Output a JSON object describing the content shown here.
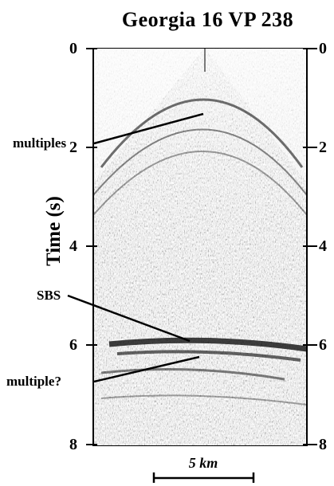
{
  "title": "Georgia 16 VP 238",
  "axis": {
    "ylabel": "Time (s)",
    "ticks": [
      "0",
      "2",
      "4",
      "6",
      "8"
    ]
  },
  "annotations": {
    "multiples": "multiples",
    "sbs": "SBS",
    "multiple_q": "multiple?"
  },
  "scale_bar": {
    "label": "5 km"
  }
}
